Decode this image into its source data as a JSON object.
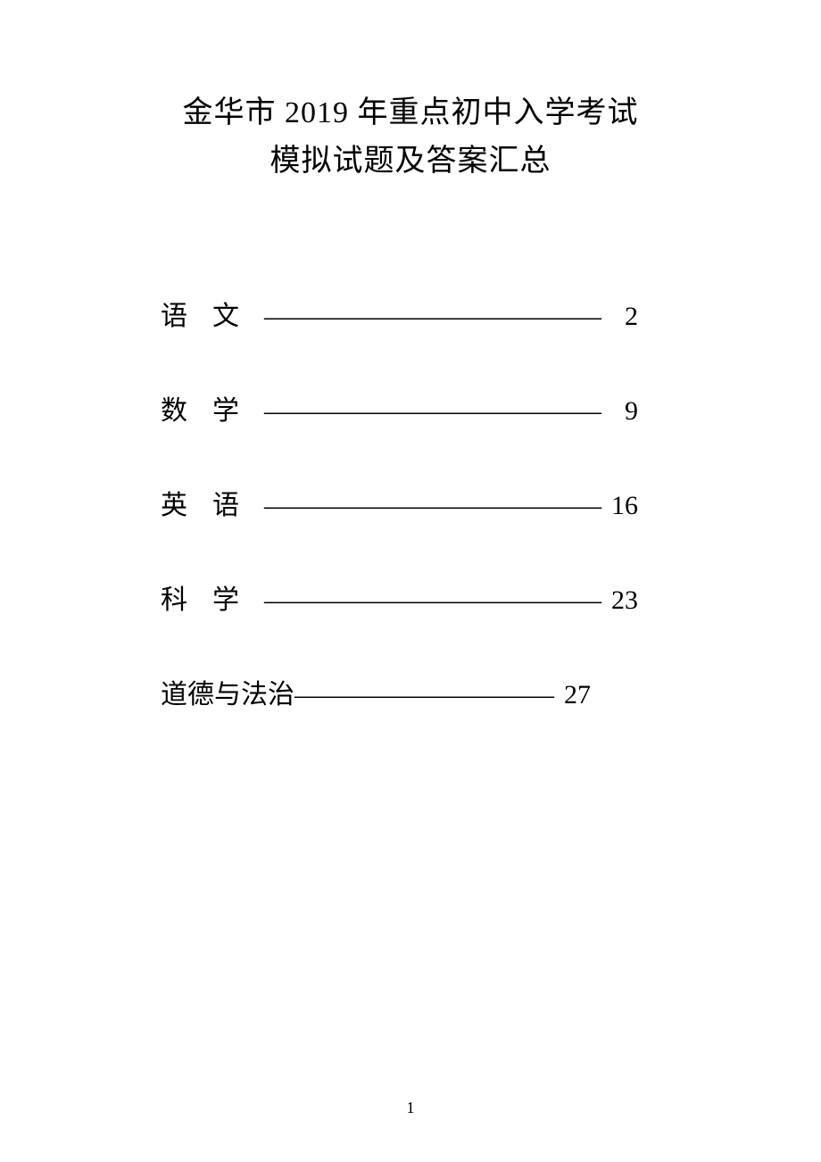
{
  "document": {
    "title_line1": "金华市 2019 年重点初中入学考试",
    "title_line2": "模拟试题及答案汇总",
    "title_fontsize": 34,
    "body_fontsize": 30,
    "text_color": "#000000",
    "background_color": "#ffffff",
    "font_family": "SimSun"
  },
  "toc": {
    "items": [
      {
        "label": "语文",
        "spaced": true,
        "leader": "—————————————",
        "page": "2"
      },
      {
        "label": "数学",
        "spaced": true,
        "leader": "—————————————",
        "page": "9"
      },
      {
        "label": "英语",
        "spaced": true,
        "leader": "—————————————",
        "page": "16"
      },
      {
        "label": "科学",
        "spaced": true,
        "leader": "—————————————",
        "page": "23"
      },
      {
        "label": "道德与法治",
        "spaced": false,
        "leader": "——————————",
        "page": "27"
      }
    ]
  },
  "footer": {
    "page_number": "1"
  }
}
